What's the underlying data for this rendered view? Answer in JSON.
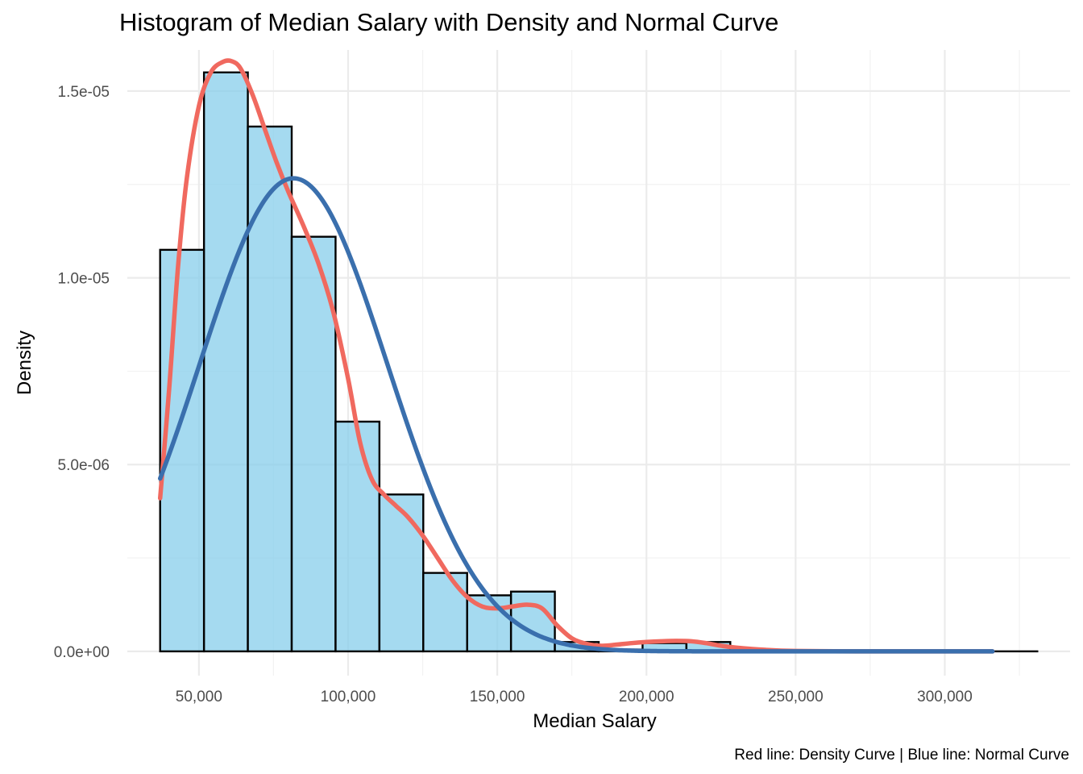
{
  "chart_data": {
    "type": "histogram",
    "title": "Histogram of Median Salary with Density and Normal Curve",
    "xlabel": "Median Salary",
    "ylabel": "Density",
    "caption": "Red line: Density Curve | Blue line: Normal Curve",
    "xlim": [
      26000,
      342000
    ],
    "ylim": [
      -6.5e-07,
      1.61e-05
    ],
    "x_ticks": [
      50000,
      100000,
      150000,
      200000,
      250000,
      300000
    ],
    "x_tick_labels": [
      "50,000",
      "100,000",
      "150,000",
      "200,000",
      "250,000",
      "300,000"
    ],
    "y_ticks": [
      0,
      5e-06,
      1e-05,
      1.5e-05
    ],
    "y_tick_labels": [
      "0.0e+00",
      "5.0e-06",
      "1.0e-05",
      "1.5e-05"
    ],
    "grid": true,
    "bar_fill": "#87ceeb",
    "bar_fill_opacity": 0.75,
    "bar_edge_color": "#000000",
    "histogram": {
      "bin_edges": [
        37000,
        51700,
        66400,
        81100,
        95800,
        110500,
        125200,
        139900,
        154600,
        169300,
        184000,
        198700,
        213400,
        228100,
        242800,
        257500,
        272200,
        286900,
        301600,
        316300,
        331000
      ],
      "densities": [
        1.075e-05,
        1.55e-05,
        1.405e-05,
        1.11e-05,
        6.15e-06,
        4.2e-06,
        2.1e-06,
        1.5e-06,
        1.6e-06,
        2.5e-07,
        5e-08,
        2.2e-07,
        2.5e-07,
        0,
        0,
        0,
        0,
        0,
        0,
        0
      ]
    },
    "series": [
      {
        "name": "Density Curve",
        "color": "#f0695f",
        "x": [
          37000,
          40000,
          43000,
          46000,
          50000,
          54000,
          58000,
          61000,
          64000,
          68000,
          72000,
          76000,
          80000,
          85000,
          90000,
          95000,
          100000,
          104000,
          108000,
          112000,
          116000,
          120000,
          125000,
          130000,
          135000,
          140000,
          145000,
          150000,
          155000,
          160000,
          165000,
          170000,
          175000,
          180000,
          185000,
          190000,
          195000,
          200000,
          205000,
          210000,
          215000,
          220000,
          225000,
          230000,
          240000,
          250000,
          270000,
          290000,
          316000
        ],
        "y": [
          4.1e-06,
          7e-06,
          1.03e-05,
          1.27e-05,
          1.46e-05,
          1.55e-05,
          1.578e-05,
          1.58e-05,
          1.56e-05,
          1.49e-05,
          1.4e-05,
          1.31e-05,
          1.23e-05,
          1.14e-05,
          1.04e-05,
          9.1e-06,
          7.3e-06,
          5.6e-06,
          4.6e-06,
          4.2e-06,
          3.9e-06,
          3.6e-06,
          3.1e-06,
          2.5e-06,
          1.9e-06,
          1.45e-06,
          1.2e-06,
          1.15e-06,
          1.2e-06,
          1.25e-06,
          1.15e-06,
          7e-07,
          3.5e-07,
          2e-07,
          1.5e-07,
          1.8e-07,
          2.2e-07,
          2.5e-07,
          2.7e-07,
          2.8e-07,
          2.7e-07,
          2.2e-07,
          1.5e-07,
          1e-07,
          4e-08,
          1e-08,
          0,
          0,
          0
        ]
      },
      {
        "name": "Normal Curve",
        "color": "#3a6fad",
        "mean": 81700,
        "sd": 31500,
        "x_range": [
          37000,
          316000
        ]
      }
    ]
  }
}
